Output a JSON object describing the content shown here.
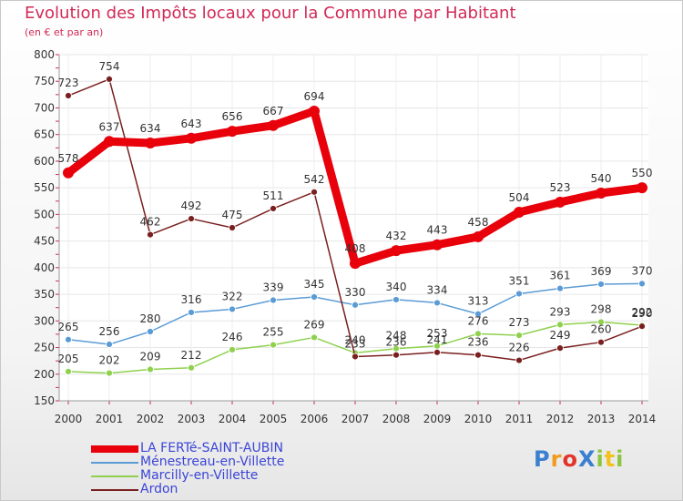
{
  "chart_data": {
    "type": "line",
    "title": "Evolution des Impôts locaux pour la Commune par Habitant",
    "subtitle": "(en € et par an)",
    "categories": [
      "2000",
      "2001",
      "2002",
      "2003",
      "2004",
      "2005",
      "2006",
      "2007",
      "2008",
      "2009",
      "2010",
      "2011",
      "2012",
      "2013",
      "2014"
    ],
    "ylim": [
      150,
      800
    ],
    "yticks": [
      150,
      200,
      250,
      300,
      350,
      400,
      450,
      500,
      550,
      600,
      650,
      700,
      750,
      800
    ],
    "grid": true,
    "legend_position": "bottom-left",
    "series": [
      {
        "name": "LA FERTé-SAINT-AUBIN",
        "color": "#e8000b",
        "values": [
          578,
          637,
          634,
          643,
          656,
          667,
          694,
          408,
          432,
          443,
          458,
          504,
          523,
          540,
          550
        ]
      },
      {
        "name": "Ménestreau-en-Villette",
        "color": "#5b9bd5",
        "values": [
          265,
          256,
          280,
          316,
          322,
          339,
          345,
          330,
          340,
          334,
          313,
          351,
          361,
          369,
          370
        ]
      },
      {
        "name": "Marcilly-en-Villette",
        "color": "#8fd14f",
        "values": [
          205,
          202,
          209,
          212,
          246,
          255,
          269,
          240,
          248,
          253,
          276,
          273,
          293,
          298,
          292
        ]
      },
      {
        "name": "Ardon",
        "color": "#7a1f1f",
        "values": [
          723,
          754,
          462,
          492,
          475,
          511,
          542,
          233,
          236,
          241,
          236,
          226,
          249,
          260,
          290
        ]
      }
    ]
  },
  "logo": {
    "text": "ProXiti",
    "letters": [
      "P",
      "r",
      "o",
      "X",
      "i",
      "t",
      "i"
    ]
  }
}
